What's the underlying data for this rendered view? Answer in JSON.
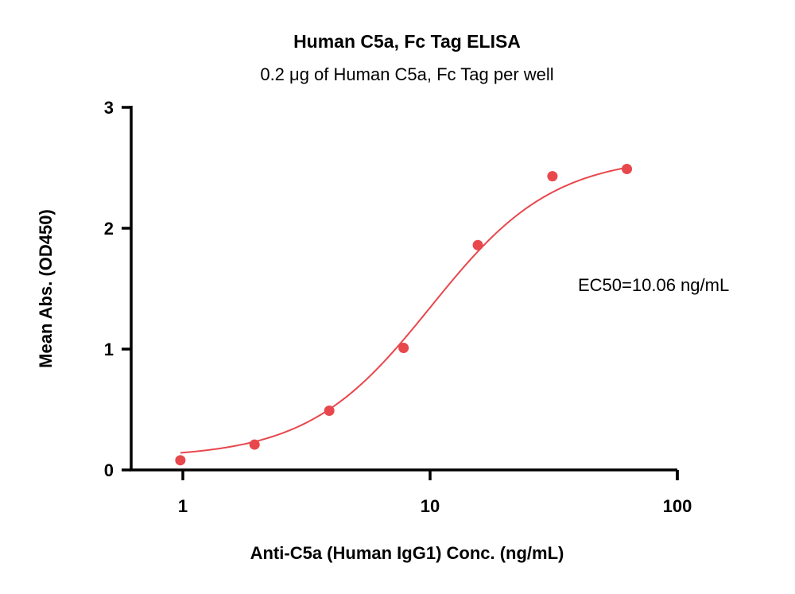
{
  "chart_data": {
    "type": "scatter",
    "title": "Human C5a, Fc Tag ELISA",
    "subtitle": "0.2 μg of Human C5a, Fc Tag per well",
    "xlabel": "Anti-C5a (Human IgG1) Conc. (ng/mL)",
    "ylabel": "Mean Abs. (OD450)",
    "x_scale": "log",
    "xlim": [
      0.6,
      100
    ],
    "ylim": [
      0,
      3
    ],
    "x_ticks": [
      1,
      10,
      100
    ],
    "y_ticks": [
      0,
      1,
      2,
      3
    ],
    "x_tick_labels": [
      "1",
      "10",
      "100"
    ],
    "y_tick_labels": [
      "0",
      "1",
      "2",
      "3"
    ],
    "grid": false,
    "legend": "none",
    "annotation": "EC50=10.06 ng/mL",
    "color": "#e8474c",
    "series": [
      {
        "points": [
          {
            "x": 0.977,
            "y": 0.08
          },
          {
            "x": 1.95,
            "y": 0.21
          },
          {
            "x": 3.91,
            "y": 0.49
          },
          {
            "x": 7.81,
            "y": 1.01
          },
          {
            "x": 15.6,
            "y": 1.86
          },
          {
            "x": 31.25,
            "y": 2.43
          },
          {
            "x": 62.5,
            "y": 2.49
          }
        ],
        "fit": {
          "model": "4PL",
          "bottom": 0.1,
          "top": 2.6,
          "ec50": 10.06,
          "hill": 1.75,
          "x_range": [
            0.977,
            62.5
          ]
        }
      }
    ]
  }
}
